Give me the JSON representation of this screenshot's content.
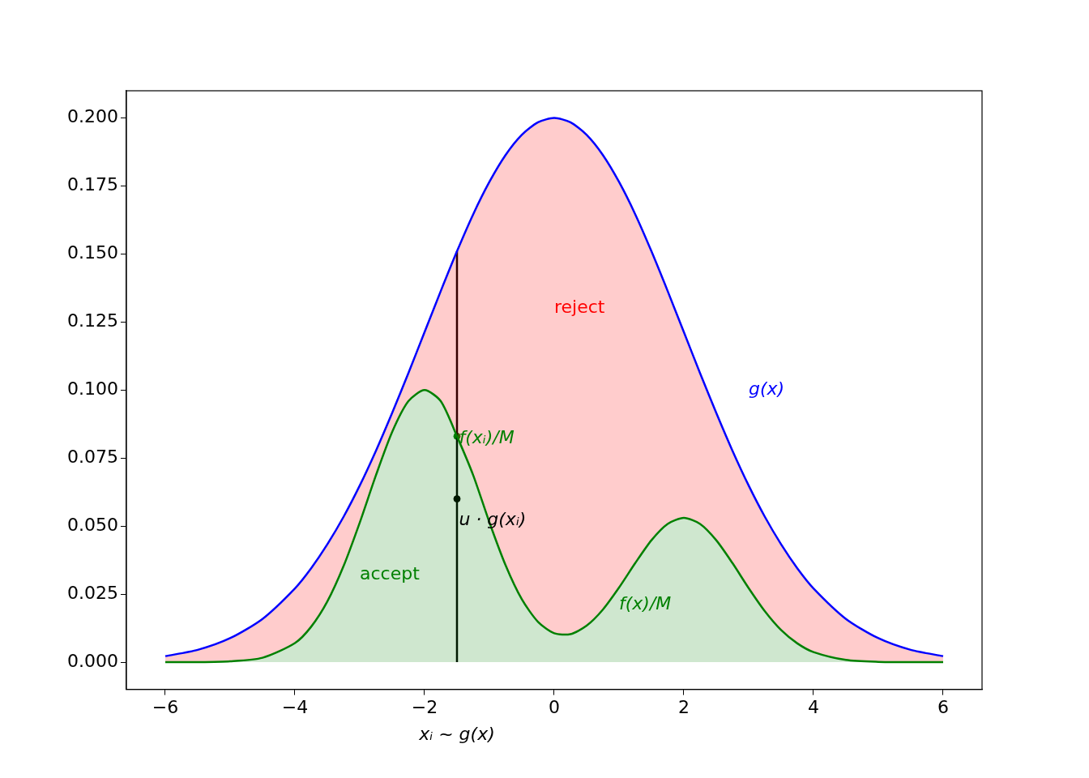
{
  "chart_data": {
    "type": "line",
    "x": [
      -6,
      -5.5,
      -5,
      -4.5,
      -4,
      -3.75,
      -3.5,
      -3.25,
      -3,
      -2.75,
      -2.5,
      -2.25,
      -2,
      -1.75,
      -1.5,
      -1.25,
      -1,
      -0.75,
      -0.5,
      -0.25,
      0,
      0.25,
      0.5,
      0.75,
      1,
      1.25,
      1.5,
      1.75,
      2,
      2.25,
      2.5,
      2.75,
      3,
      3.25,
      3.5,
      3.75,
      4,
      4.5,
      5,
      5.5,
      6
    ],
    "series": [
      {
        "color": "#008000",
        "values": [
          0,
          0,
          0.0003,
          0.0016,
          0.007,
          0.013,
          0.0223,
          0.0353,
          0.0513,
          0.0687,
          0.0846,
          0.0959,
          0.1,
          0.0959,
          0.083,
          0.0687,
          0.0514,
          0.0356,
          0.0231,
          0.0148,
          0.0106,
          0.0103,
          0.0134,
          0.0193,
          0.0274,
          0.0364,
          0.0448,
          0.0508,
          0.053,
          0.0508,
          0.0448,
          0.0364,
          0.0272,
          0.0187,
          0.0118,
          0.0069,
          0.0037,
          0.0008,
          0.0001,
          0,
          0
        ]
      },
      {
        "color": "#0000ff",
        "values": [
          0.0022,
          0.0045,
          0.0088,
          0.0159,
          0.0271,
          0.0345,
          0.0433,
          0.0534,
          0.0649,
          0.0777,
          0.0916,
          0.1062,
          0.1213,
          0.1364,
          0.151,
          0.1646,
          0.1765,
          0.1864,
          0.1938,
          0.1984,
          0.2,
          0.1984,
          0.1938,
          0.1864,
          0.1765,
          0.1646,
          0.151,
          0.1364,
          0.1213,
          0.1062,
          0.0916,
          0.0777,
          0.0649,
          0.0534,
          0.0433,
          0.0345,
          0.0271,
          0.0159,
          0.0088,
          0.0045,
          0.0022
        ]
      }
    ],
    "sample": {
      "x": -1.5,
      "g": 0.151,
      "f_over_M": 0.083,
      "u_g": 0.06
    },
    "xlabel": "xᵢ ~ g(x)",
    "annotations": [
      {
        "text": "reject",
        "x": 0,
        "y": 0.13,
        "color": "#ff0000"
      },
      {
        "text": "accept",
        "x": -3,
        "y": 0.032,
        "color": "#008000"
      },
      {
        "text": "g(x)",
        "x": 3,
        "y": 0.1,
        "color": "#0000ff"
      },
      {
        "text": "f(x)/M",
        "x": 1,
        "y": 0.021,
        "color": "#008000"
      },
      {
        "text": "f(xᵢ)/M",
        "x": -1.47,
        "y": 0.082,
        "color": "#008000"
      },
      {
        "text": "u · g(xᵢ)",
        "x": -1.47,
        "y": 0.052,
        "color": "#000000"
      }
    ],
    "xlim": [
      -6.6,
      6.6
    ],
    "ylim": [
      -0.01,
      0.21
    ],
    "xticks": [
      {
        "value": -6,
        "label": "−6"
      },
      {
        "value": -4,
        "label": "−4"
      },
      {
        "value": -2,
        "label": "−2"
      },
      0,
      2,
      4,
      6
    ],
    "yticks": [
      {
        "value": 0,
        "label": "0.000"
      },
      {
        "value": 0.025,
        "label": "0.025"
      },
      {
        "value": 0.05,
        "label": "0.050"
      },
      {
        "value": 0.075,
        "label": "0.075"
      },
      {
        "value": 0.1,
        "label": "0.100"
      },
      {
        "value": 0.125,
        "label": "0.125"
      },
      {
        "value": 0.15,
        "label": "0.150"
      },
      {
        "value": 0.175,
        "label": "0.175"
      },
      {
        "value": 0.2,
        "label": "0.200"
      }
    ],
    "grid": false
  }
}
